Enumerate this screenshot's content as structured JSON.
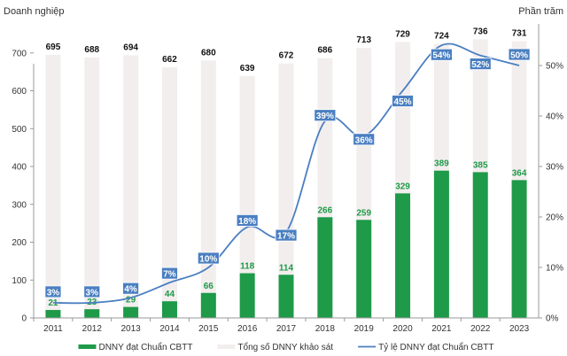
{
  "chart_data": {
    "type": "bar+line",
    "categories": [
      "2011",
      "2012",
      "2013",
      "2014",
      "2015",
      "2016",
      "2017",
      "2018",
      "2019",
      "2020",
      "2021",
      "2022",
      "2023"
    ],
    "series": [
      {
        "name": "DNNY đạt Chuẩn CBTT",
        "type": "bar",
        "axis": "left",
        "color": "#1e9a48",
        "values": [
          21,
          23,
          29,
          44,
          66,
          118,
          114,
          266,
          259,
          329,
          389,
          385,
          364
        ]
      },
      {
        "name": "Tổng số DNNY khảo sát",
        "type": "bar",
        "axis": "left",
        "color": "#f3eeee",
        "values": [
          695,
          688,
          694,
          662,
          680,
          639,
          672,
          686,
          713,
          729,
          724,
          736,
          731
        ]
      },
      {
        "name": "Tỷ lệ DNNY đạt Chuẩn CBTT",
        "type": "line",
        "axis": "right",
        "color": "#4a7fc1",
        "values": [
          3,
          3,
          4,
          7,
          10,
          18,
          17,
          39,
          36,
          45,
          54,
          52,
          50
        ],
        "labels": [
          "3%",
          "3%",
          "4%",
          "7%",
          "10%",
          "18%",
          "17%",
          "39%",
          "36%",
          "45%",
          "54%",
          "52%",
          "50%"
        ]
      }
    ],
    "ylabel_left": "Doanh nghiệp",
    "ylabel_right": "Phần trăm",
    "ylim_left": [
      0,
      800
    ],
    "ylim_right": [
      0,
      60
    ],
    "yticks_left": [
      "0",
      "100",
      "200",
      "300",
      "400",
      "500",
      "600",
      "700"
    ],
    "yticks_right": [
      "0%",
      "10%",
      "20%",
      "30%",
      "40%",
      "50%"
    ],
    "grid": false,
    "legend_position": "bottom"
  }
}
